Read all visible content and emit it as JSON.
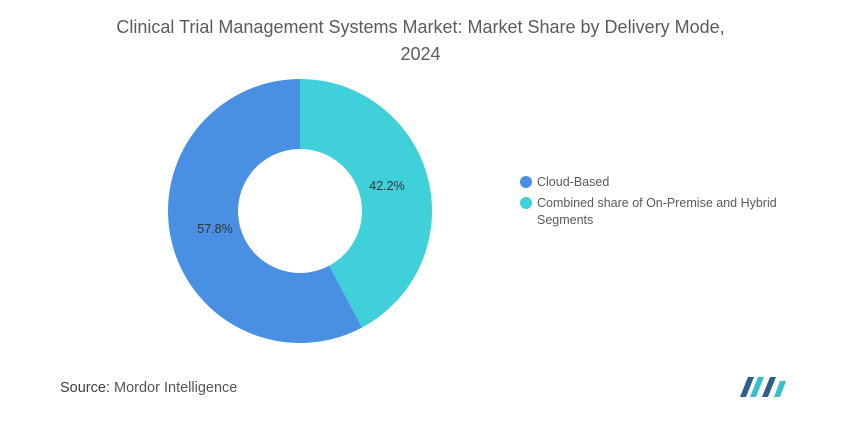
{
  "chart_data": {
    "type": "pie",
    "donut": true,
    "title": "Clinical Trial Management Systems Market: Market Share by Delivery Mode, 2024",
    "series": [
      {
        "name": "Cloud-Based",
        "value": 57.8,
        "label": "57.8%",
        "color": "#4a90e2"
      },
      {
        "name": "Combined share of On-Premise and Hybrid Segments",
        "value": 42.2,
        "label": "42.2%",
        "color": "#40d0da"
      }
    ],
    "legend_position": "right"
  },
  "source": {
    "label": "Source:",
    "text": "Mordor Intelligence"
  },
  "logo": {
    "icon": "mordor-intelligence-logo",
    "colors": [
      "#2f5f8a",
      "#38c1c9"
    ]
  }
}
